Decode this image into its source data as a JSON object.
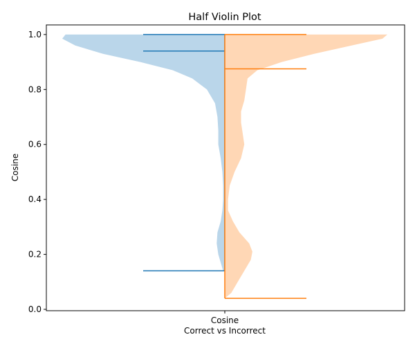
{
  "chart_data": {
    "type": "half-violin",
    "title": "Half Violin Plot",
    "xlabel": "Correct vs Incorrect",
    "ylabel": "Cosine",
    "categories": [
      "Cosine"
    ],
    "ylim": [
      -0.005,
      1.035
    ],
    "yticks": [
      "0.0",
      "0.2",
      "0.4",
      "0.6",
      "0.8",
      "1.0"
    ],
    "grid": false,
    "series": [
      {
        "side": "left",
        "color": "#1f77b4",
        "fill": "#bad6ea",
        "min": 0.14,
        "median": 0.94,
        "max": 1.0,
        "density": [
          [
            0.14,
            0.01
          ],
          [
            0.16,
            0.02
          ],
          [
            0.2,
            0.04
          ],
          [
            0.24,
            0.05
          ],
          [
            0.28,
            0.045
          ],
          [
            0.32,
            0.025
          ],
          [
            0.36,
            0.015
          ],
          [
            0.4,
            0.01
          ],
          [
            0.45,
            0.01
          ],
          [
            0.5,
            0.015
          ],
          [
            0.55,
            0.025
          ],
          [
            0.6,
            0.04
          ],
          [
            0.65,
            0.04
          ],
          [
            0.7,
            0.045
          ],
          [
            0.75,
            0.06
          ],
          [
            0.8,
            0.11
          ],
          [
            0.84,
            0.2
          ],
          [
            0.87,
            0.32
          ],
          [
            0.9,
            0.52
          ],
          [
            0.93,
            0.75
          ],
          [
            0.96,
            0.92
          ],
          [
            0.985,
            1.0
          ],
          [
            1.0,
            0.98
          ]
        ]
      },
      {
        "side": "right",
        "color": "#ff7f0e",
        "fill": "#ffd7b5",
        "min": 0.04,
        "median": 0.875,
        "max": 1.0,
        "density": [
          [
            0.04,
            0.0
          ],
          [
            0.06,
            0.04
          ],
          [
            0.1,
            0.08
          ],
          [
            0.14,
            0.12
          ],
          [
            0.18,
            0.16
          ],
          [
            0.21,
            0.17
          ],
          [
            0.24,
            0.15
          ],
          [
            0.28,
            0.09
          ],
          [
            0.32,
            0.05
          ],
          [
            0.36,
            0.02
          ],
          [
            0.4,
            0.02
          ],
          [
            0.45,
            0.03
          ],
          [
            0.5,
            0.06
          ],
          [
            0.55,
            0.1
          ],
          [
            0.6,
            0.12
          ],
          [
            0.64,
            0.11
          ],
          [
            0.68,
            0.1
          ],
          [
            0.72,
            0.1
          ],
          [
            0.76,
            0.12
          ],
          [
            0.8,
            0.13
          ],
          [
            0.84,
            0.14
          ],
          [
            0.87,
            0.2
          ],
          [
            0.9,
            0.35
          ],
          [
            0.93,
            0.55
          ],
          [
            0.96,
            0.78
          ],
          [
            0.985,
            0.97
          ],
          [
            1.0,
            1.0
          ]
        ]
      }
    ]
  }
}
